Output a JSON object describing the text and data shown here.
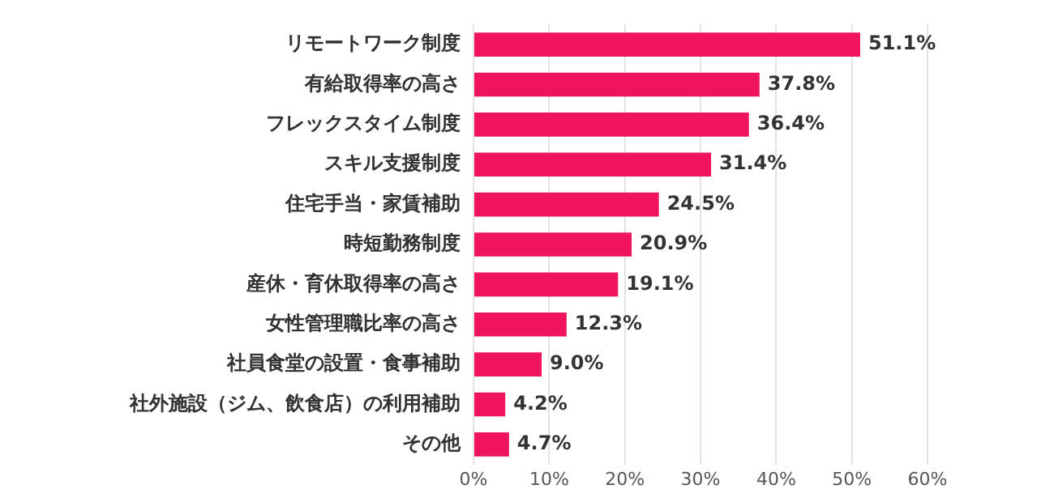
{
  "chart_data": {
    "type": "bar",
    "orientation": "horizontal",
    "categories": [
      "リモートワーク制度",
      "有給取得率の高さ",
      "フレックスタイム制度",
      "スキル支援制度",
      "住宅手当・家賃補助",
      "時短勤務制度",
      "産休・育休取得率の高さ",
      "女性管理職比率の高さ",
      "社員食堂の設置・食事補助",
      "社外施設（ジム、飲食店）の利用補助",
      "その他"
    ],
    "values": [
      51.1,
      37.8,
      36.4,
      31.4,
      24.5,
      20.9,
      19.1,
      12.3,
      9.0,
      4.2,
      4.7
    ],
    "value_labels": [
      "51.1%",
      "37.8%",
      "36.4%",
      "31.4%",
      "24.5%",
      "20.9%",
      "19.1%",
      "12.3%",
      "9.0%",
      "4.2%",
      "4.7%"
    ],
    "color": "#f0145f",
    "xlim": [
      0,
      60
    ],
    "xticks": [
      {
        "value": 0,
        "label": "0%"
      },
      {
        "value": 10,
        "label": "10%"
      },
      {
        "value": 20,
        "label": "20%"
      },
      {
        "value": 30,
        "label": "30%"
      },
      {
        "value": 40,
        "label": "40%"
      },
      {
        "value": 50,
        "label": "50%"
      },
      {
        "value": 60,
        "label": "60%"
      }
    ],
    "grid": "x"
  }
}
